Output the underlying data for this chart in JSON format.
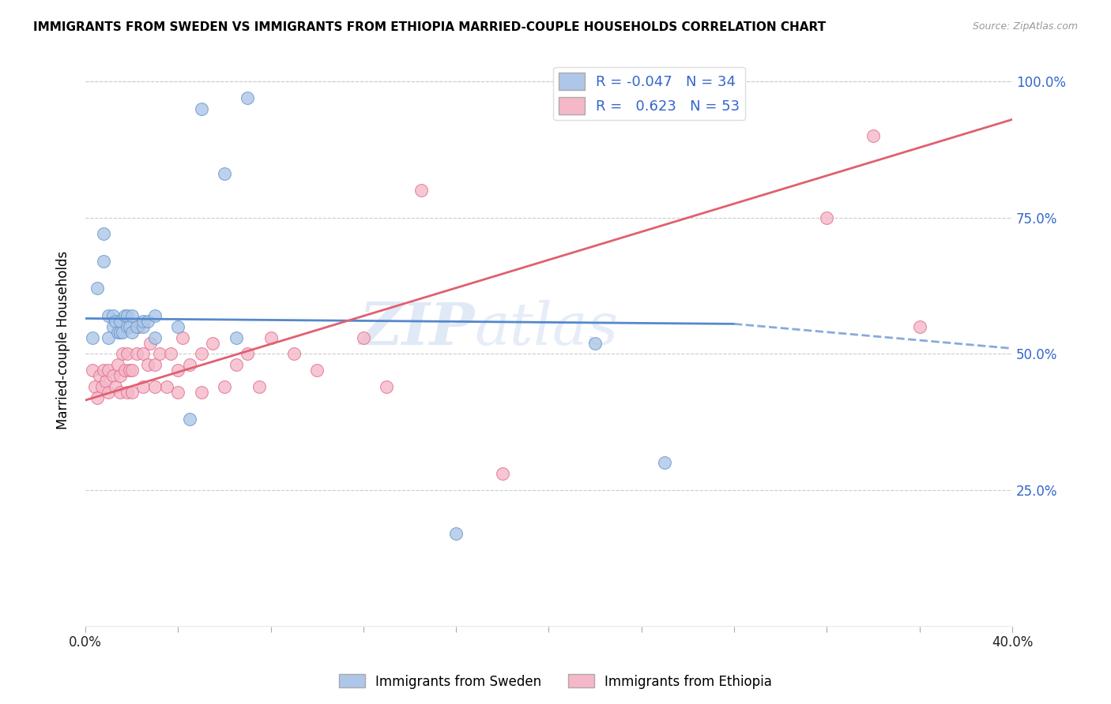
{
  "title": "IMMIGRANTS FROM SWEDEN VS IMMIGRANTS FROM ETHIOPIA MARRIED-COUPLE HOUSEHOLDS CORRELATION CHART",
  "source": "Source: ZipAtlas.com",
  "ylabel": "Married-couple Households",
  "yticks": [
    0.0,
    0.25,
    0.5,
    0.75,
    1.0
  ],
  "ytick_labels": [
    "",
    "25.0%",
    "50.0%",
    "75.0%",
    "100.0%"
  ],
  "xlim": [
    0.0,
    0.4
  ],
  "ylim": [
    0.0,
    1.05
  ],
  "sweden_color": "#aec6e8",
  "sweden_edge": "#6699cc",
  "ethiopia_color": "#f5b8c8",
  "ethiopia_edge": "#e07090",
  "sweden_line_solid_color": "#5588cc",
  "sweden_line_dash_color": "#88aadd",
  "ethiopia_line_color": "#e06070",
  "legend_sweden_label": "R = -0.047   N = 34",
  "legend_ethiopia_label": "R =   0.623   N = 53",
  "bottom_legend_sweden": "Immigrants from Sweden",
  "bottom_legend_ethiopia": "Immigrants from Ethiopia",
  "watermark": "ZIPatlas",
  "sweden_R": -0.047,
  "ethiopia_R": 0.623,
  "sweden_x": [
    0.003,
    0.005,
    0.008,
    0.008,
    0.01,
    0.01,
    0.012,
    0.012,
    0.013,
    0.014,
    0.015,
    0.015,
    0.016,
    0.017,
    0.018,
    0.018,
    0.019,
    0.02,
    0.02,
    0.022,
    0.025,
    0.025,
    0.027,
    0.03,
    0.03,
    0.04,
    0.045,
    0.05,
    0.06,
    0.065,
    0.07,
    0.16,
    0.22,
    0.25
  ],
  "sweden_y": [
    0.53,
    0.62,
    0.67,
    0.72,
    0.53,
    0.57,
    0.55,
    0.57,
    0.56,
    0.54,
    0.54,
    0.56,
    0.54,
    0.57,
    0.55,
    0.57,
    0.55,
    0.54,
    0.57,
    0.55,
    0.55,
    0.56,
    0.56,
    0.53,
    0.57,
    0.55,
    0.38,
    0.95,
    0.83,
    0.53,
    0.97,
    0.17,
    0.52,
    0.3
  ],
  "ethiopia_x": [
    0.003,
    0.004,
    0.005,
    0.006,
    0.007,
    0.008,
    0.009,
    0.01,
    0.01,
    0.012,
    0.013,
    0.014,
    0.015,
    0.015,
    0.016,
    0.017,
    0.018,
    0.018,
    0.019,
    0.02,
    0.02,
    0.022,
    0.023,
    0.025,
    0.025,
    0.027,
    0.028,
    0.03,
    0.03,
    0.032,
    0.035,
    0.037,
    0.04,
    0.04,
    0.042,
    0.045,
    0.05,
    0.05,
    0.055,
    0.06,
    0.065,
    0.07,
    0.075,
    0.08,
    0.09,
    0.1,
    0.12,
    0.13,
    0.145,
    0.18,
    0.32,
    0.34,
    0.36
  ],
  "ethiopia_y": [
    0.47,
    0.44,
    0.42,
    0.46,
    0.44,
    0.47,
    0.45,
    0.43,
    0.47,
    0.46,
    0.44,
    0.48,
    0.43,
    0.46,
    0.5,
    0.47,
    0.43,
    0.5,
    0.47,
    0.43,
    0.47,
    0.5,
    0.55,
    0.44,
    0.5,
    0.48,
    0.52,
    0.44,
    0.48,
    0.5,
    0.44,
    0.5,
    0.43,
    0.47,
    0.53,
    0.48,
    0.43,
    0.5,
    0.52,
    0.44,
    0.48,
    0.5,
    0.44,
    0.53,
    0.5,
    0.47,
    0.53,
    0.44,
    0.8,
    0.28,
    0.75,
    0.9,
    0.55
  ],
  "sweden_trend_x0": 0.0,
  "sweden_trend_y0": 0.565,
  "sweden_trend_x1": 0.28,
  "sweden_trend_y1": 0.555,
  "sweden_trend_xdash0": 0.28,
  "sweden_trend_ydash0": 0.555,
  "sweden_trend_xdash1": 0.4,
  "sweden_trend_ydash1": 0.51,
  "ethiopia_trend_x0": 0.0,
  "ethiopia_trend_y0": 0.415,
  "ethiopia_trend_x1": 0.4,
  "ethiopia_trend_y1": 0.93
}
